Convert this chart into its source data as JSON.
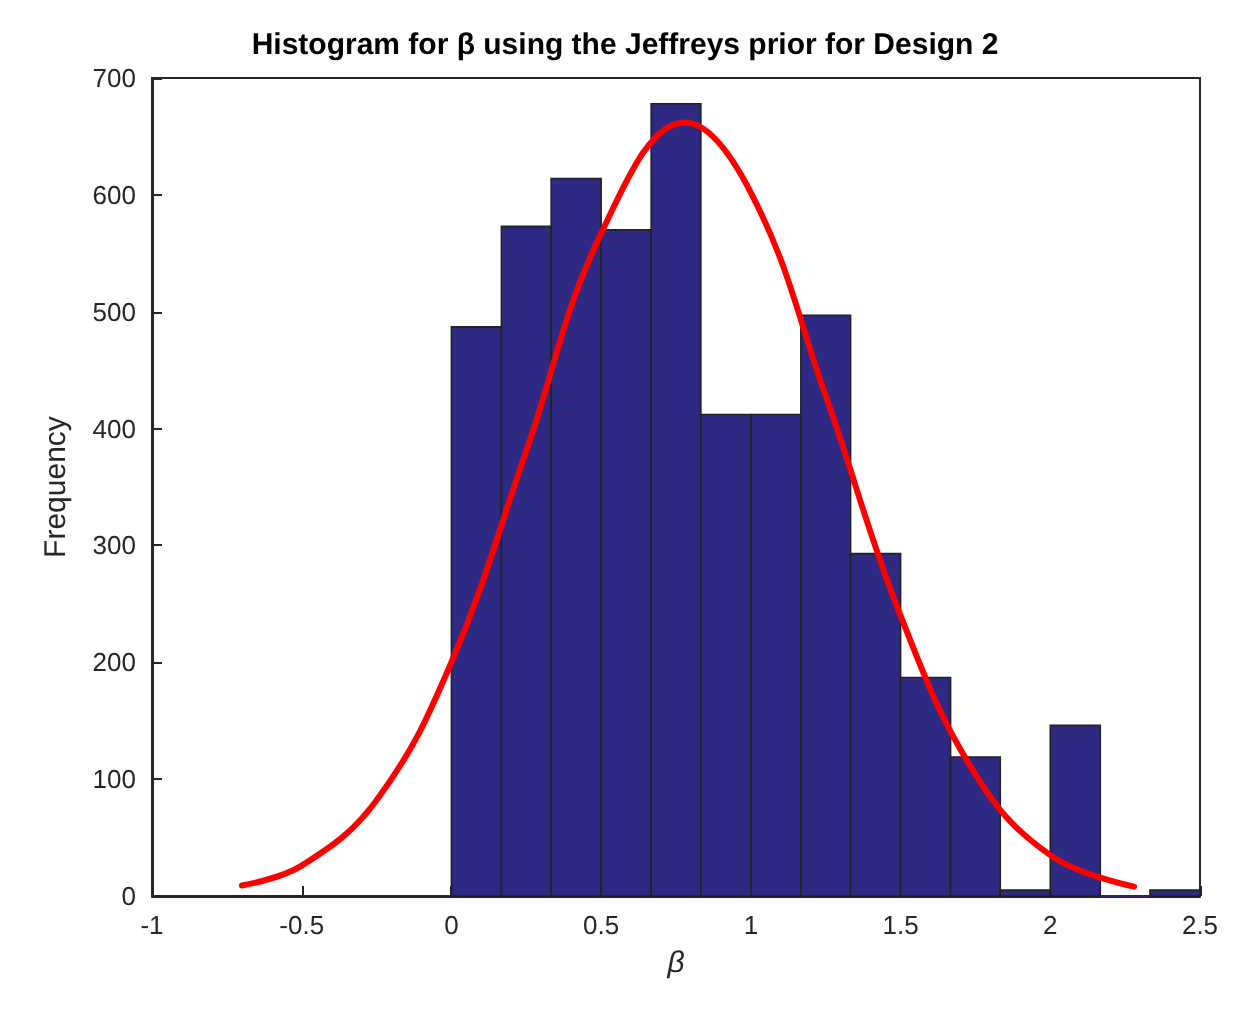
{
  "chart_data": {
    "type": "histogram",
    "title": "Histogram for β using the Jeffreys prior for Design 2",
    "xlabel": "β",
    "ylabel": "Frequency",
    "bins": [
      0,
      0.167,
      0.333,
      0.5,
      0.667,
      0.833,
      1,
      1.167,
      1.333,
      1.5,
      1.667,
      1.833,
      2,
      2.167,
      2.333,
      2.5
    ],
    "values": [
      487,
      573,
      614,
      570,
      678,
      412,
      412,
      497,
      293,
      187,
      119,
      5,
      146,
      0,
      5
    ],
    "color": "#2e2a84",
    "series": [
      {
        "type": "line",
        "color": "#ff0000",
        "x": [
          -0.7,
          -0.5,
          -0.25,
          0,
          0.25,
          0.5,
          0.78,
          1,
          1.25,
          1.5,
          1.75,
          2,
          2.28
        ],
        "values": [
          9,
          26,
          82,
          200,
          381,
          567,
          662,
          602,
          428,
          240,
          104,
          35,
          8
        ]
      }
    ],
    "xlim": [
      -1,
      2.5
    ],
    "xticks": [
      -1,
      -0.5,
      0,
      0.5,
      1,
      1.5,
      2,
      2.5
    ],
    "ylim": [
      0,
      700
    ],
    "yticks": [
      0,
      100,
      200,
      300,
      400,
      500,
      600,
      700
    ],
    "grid": false,
    "marker": "none",
    "line_style": "solid"
  }
}
